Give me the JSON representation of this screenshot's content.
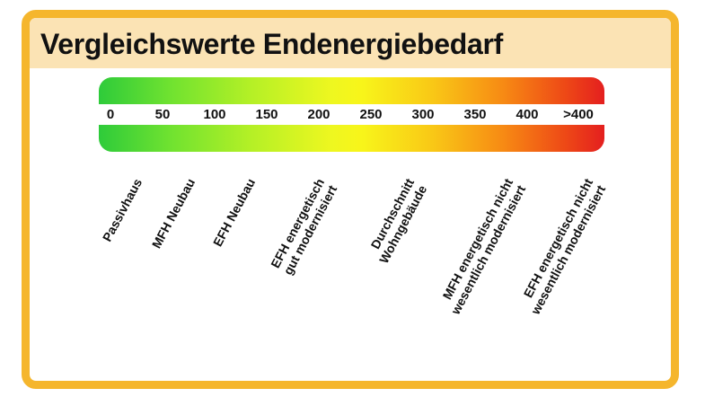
{
  "title": "Vergleichswerte Endenergiebedarf",
  "scale": {
    "ticks": [
      "0",
      "50",
      "100",
      "150",
      "200",
      "250",
      "300",
      "350",
      "400",
      ">400"
    ],
    "colors": {
      "low": "#2ecb3a",
      "mid": "#f8f51a",
      "high": "#e41f1f"
    }
  },
  "categories": [
    {
      "text": "Passivhaus",
      "value": 15
    },
    {
      "text": "MFH Neubau",
      "value": 60
    },
    {
      "text": "EFH Neubau",
      "value": 100
    },
    {
      "text": "EFH energetisch\ngut modernisiert",
      "value": 150
    },
    {
      "text": "Durchschnitt\nWohngebäude",
      "value": 250
    },
    {
      "text": "MFH energetisch nicht\nwesentlich modernisiert",
      "value": 350
    },
    {
      "text": "EFH energetisch nicht\nwesentlich modernisiert",
      "value": 410
    }
  ],
  "frame_color": "#f5b62d",
  "header_color": "#fbe3b4"
}
